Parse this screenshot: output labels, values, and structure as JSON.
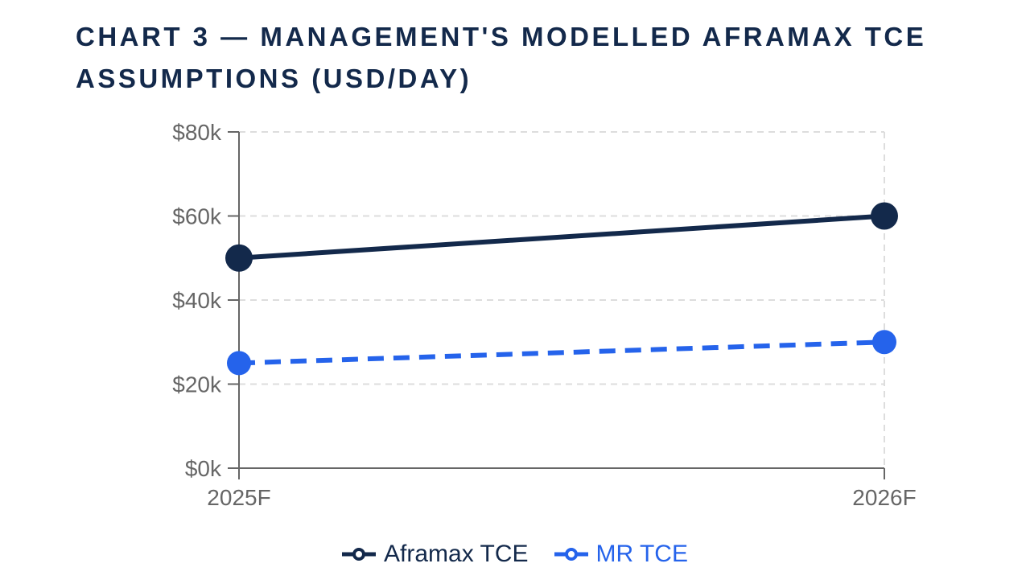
{
  "chart_data": {
    "type": "line",
    "title": "CHART 3 — MANAGEMENT'S MODELLED AFRAMAX TCE ASSUMPTIONS (USD/DAY)",
    "categories": [
      "2025F",
      "2026F"
    ],
    "series": [
      {
        "name": "Aframax TCE",
        "values": [
          50000,
          60000
        ],
        "color": "#13294b",
        "dashed": false
      },
      {
        "name": "MR TCE",
        "values": [
          25000,
          30000
        ],
        "color": "#2563eb",
        "dashed": true
      }
    ],
    "ylim": [
      0,
      80000
    ],
    "yticks": [
      0,
      20000,
      40000,
      60000,
      80000
    ],
    "ytick_labels": [
      "$0k",
      "$20k",
      "$40k",
      "$60k",
      "$80k"
    ],
    "xlabel": "",
    "ylabel": "",
    "grid": true,
    "legend": "bottom-center"
  }
}
